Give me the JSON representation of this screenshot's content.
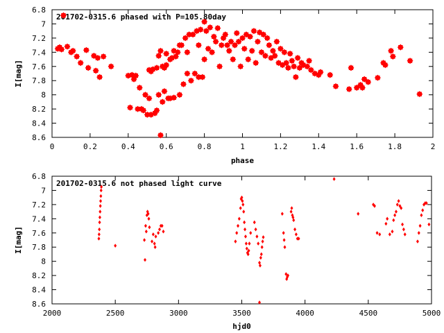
{
  "chart_data": [
    {
      "type": "scatter",
      "title": "201702-0315.6 phased with P=105.80day",
      "xlabel": "phase",
      "ylabel": "I[mag]",
      "xlim": [
        0,
        2
      ],
      "ylim": [
        8.6,
        6.8
      ],
      "y_inverted": true,
      "grid": false,
      "marker_color": "#ff0000",
      "xticks": [
        "0",
        "0.2",
        "0.4",
        "0.6",
        "0.8",
        "1",
        "1.2",
        "1.4",
        "1.6",
        "1.8",
        "2"
      ],
      "yticks": [
        "6.8",
        "7",
        "7.2",
        "7.4",
        "7.6",
        "7.8",
        "8",
        "8.2",
        "8.4",
        "8.6"
      ],
      "series": [
        {
          "points": [
            [
              0.03,
              7.35
            ],
            [
              0.04,
              7.33
            ],
            [
              0.06,
              6.88
            ],
            [
              0.05,
              7.36
            ],
            [
              0.08,
              7.32
            ],
            [
              0.1,
              7.4
            ],
            [
              0.11,
              7.38
            ],
            [
              0.13,
              7.46
            ],
            [
              0.15,
              7.55
            ],
            [
              0.18,
              7.37
            ],
            [
              0.19,
              7.62
            ],
            [
              0.22,
              7.45
            ],
            [
              0.23,
              7.66
            ],
            [
              0.24,
              7.48
            ],
            [
              0.25,
              7.75
            ],
            [
              0.27,
              7.46
            ],
            [
              0.31,
              7.6
            ],
            [
              0.4,
              7.73
            ],
            [
              0.41,
              8.18
            ],
            [
              0.42,
              7.72
            ],
            [
              0.43,
              7.78
            ],
            [
              0.44,
              7.73
            ],
            [
              0.45,
              8.2
            ],
            [
              0.46,
              7.9
            ],
            [
              0.47,
              8.2
            ],
            [
              0.48,
              8.22
            ],
            [
              0.49,
              8.0
            ],
            [
              0.5,
              8.28
            ],
            [
              0.51,
              8.05
            ],
            [
              0.51,
              7.65
            ],
            [
              0.52,
              8.28
            ],
            [
              0.52,
              7.67
            ],
            [
              0.53,
              7.64
            ],
            [
              0.54,
              8.26
            ],
            [
              0.55,
              8.22
            ],
            [
              0.55,
              7.62
            ],
            [
              0.56,
              8.0
            ],
            [
              0.56,
              7.45
            ],
            [
              0.57,
              7.38
            ],
            [
              0.57,
              8.57
            ],
            [
              0.58,
              7.6
            ],
            [
              0.58,
              8.1
            ],
            [
              0.59,
              7.62
            ],
            [
              0.59,
              7.95
            ],
            [
              0.6,
              7.42
            ],
            [
              0.6,
              7.58
            ],
            [
              0.61,
              8.05
            ],
            [
              0.62,
              7.5
            ],
            [
              0.62,
              8.05
            ],
            [
              0.63,
              7.48
            ],
            [
              0.64,
              7.38
            ],
            [
              0.64,
              8.04
            ],
            [
              0.65,
              7.46
            ],
            [
              0.66,
              7.4
            ],
            [
              0.67,
              7.3
            ],
            [
              0.67,
              8.0
            ],
            [
              0.68,
              7.3
            ],
            [
              0.69,
              7.85
            ],
            [
              0.7,
              7.2
            ],
            [
              0.71,
              7.7
            ],
            [
              0.71,
              7.4
            ],
            [
              0.72,
              7.15
            ],
            [
              0.73,
              7.8
            ],
            [
              0.74,
              7.15
            ],
            [
              0.75,
              7.7
            ],
            [
              0.76,
              7.1
            ],
            [
              0.77,
              7.75
            ],
            [
              0.77,
              7.3
            ],
            [
              0.78,
              7.08
            ],
            [
              0.79,
              7.75
            ],
            [
              0.8,
              6.97
            ],
            [
              0.8,
              7.5
            ],
            [
              0.81,
              7.1
            ],
            [
              0.82,
              7.35
            ],
            [
              0.83,
              7.05
            ],
            [
              0.84,
              7.4
            ],
            [
              0.85,
              7.18
            ],
            [
              0.86,
              7.25
            ],
            [
              0.87,
              7.06
            ],
            [
              0.88,
              7.6
            ],
            [
              0.89,
              7.3
            ],
            [
              0.9,
              7.2
            ],
            [
              0.91,
              7.15
            ],
            [
              0.92,
              7.3
            ],
            [
              0.93,
              7.38
            ],
            [
              0.94,
              7.25
            ],
            [
              0.95,
              7.5
            ],
            [
              0.96,
              7.3
            ],
            [
              0.97,
              7.13
            ],
            [
              0.98,
              7.25
            ],
            [
              0.99,
              7.6
            ],
            [
              1.0,
              7.2
            ],
            [
              1.01,
              7.35
            ],
            [
              1.02,
              7.15
            ],
            [
              1.03,
              7.5
            ],
            [
              1.04,
              7.18
            ],
            [
              1.05,
              7.38
            ],
            [
              1.06,
              7.1
            ],
            [
              1.07,
              7.55
            ],
            [
              1.08,
              7.25
            ],
            [
              1.09,
              7.12
            ],
            [
              1.1,
              7.4
            ],
            [
              1.11,
              7.15
            ],
            [
              1.12,
              7.45
            ],
            [
              1.13,
              7.2
            ],
            [
              1.14,
              7.3
            ],
            [
              1.15,
              7.48
            ],
            [
              1.16,
              7.38
            ],
            [
              1.17,
              7.45
            ],
            [
              1.18,
              7.25
            ],
            [
              1.19,
              7.55
            ],
            [
              1.2,
              7.35
            ],
            [
              1.21,
              7.58
            ],
            [
              1.22,
              7.4
            ],
            [
              1.23,
              7.55
            ],
            [
              1.24,
              7.62
            ],
            [
              1.25,
              7.42
            ],
            [
              1.26,
              7.52
            ],
            [
              1.27,
              7.6
            ],
            [
              1.28,
              7.75
            ],
            [
              1.29,
              7.48
            ],
            [
              1.3,
              7.62
            ],
            [
              1.31,
              7.55
            ],
            [
              1.32,
              7.58
            ],
            [
              1.34,
              7.6
            ],
            [
              1.35,
              7.52
            ],
            [
              1.36,
              7.65
            ],
            [
              1.38,
              7.7
            ],
            [
              1.4,
              7.72
            ],
            [
              1.41,
              7.68
            ],
            [
              1.46,
              7.72
            ],
            [
              1.49,
              7.88
            ],
            [
              1.56,
              7.92
            ],
            [
              1.57,
              7.62
            ],
            [
              1.6,
              7.9
            ],
            [
              1.62,
              7.86
            ],
            [
              1.63,
              7.9
            ],
            [
              1.64,
              7.78
            ],
            [
              1.66,
              7.82
            ],
            [
              1.71,
              7.76
            ],
            [
              1.74,
              7.55
            ],
            [
              1.75,
              7.58
            ],
            [
              1.78,
              7.38
            ],
            [
              1.79,
              7.46
            ],
            [
              1.83,
              7.33
            ],
            [
              1.88,
              7.52
            ],
            [
              1.93,
              7.99
            ]
          ]
        }
      ]
    },
    {
      "type": "scatter",
      "title": "201702-0315.6 not phased light curve",
      "xlabel": "hjd0",
      "ylabel": "I[mag]",
      "xlim": [
        2000,
        5000
      ],
      "ylim": [
        8.6,
        6.8
      ],
      "y_inverted": true,
      "grid": false,
      "marker_color": "#ff0000",
      "xticks": [
        "2000",
        "2500",
        "3000",
        "3500",
        "4000",
        "4500",
        "5000"
      ],
      "yticks": [
        "6.8",
        "7",
        "7.2",
        "7.4",
        "7.6",
        "7.8",
        "8",
        "8.2",
        "8.4",
        "8.6"
      ],
      "series": [
        {
          "points": [
            [
              2370,
              7.68
            ],
            [
              2372,
              7.62
            ],
            [
              2374,
              7.55
            ],
            [
              2376,
              7.45
            ],
            [
              2378,
              7.38
            ],
            [
              2380,
              7.3
            ],
            [
              2382,
              7.22
            ],
            [
              2384,
              7.15
            ],
            [
              2386,
              7.08
            ],
            [
              2388,
              7.0
            ],
            [
              2390,
              6.95
            ],
            [
              2500,
              7.78
            ],
            [
              2730,
              7.7
            ],
            [
              2735,
              7.98
            ],
            [
              2740,
              7.5
            ],
            [
              2745,
              7.58
            ],
            [
              2750,
              7.35
            ],
            [
              2755,
              7.3
            ],
            [
              2760,
              7.33
            ],
            [
              2765,
              7.4
            ],
            [
              2770,
              7.52
            ],
            [
              2790,
              7.72
            ],
            [
              2800,
              7.62
            ],
            [
              2810,
              7.75
            ],
            [
              2815,
              7.8
            ],
            [
              2820,
              7.65
            ],
            [
              2840,
              7.6
            ],
            [
              2850,
              7.55
            ],
            [
              2860,
              7.5
            ],
            [
              2870,
              7.5
            ],
            [
              2880,
              7.58
            ],
            [
              3450,
              7.72
            ],
            [
              3460,
              7.6
            ],
            [
              3470,
              7.5
            ],
            [
              3480,
              7.4
            ],
            [
              3490,
              7.25
            ],
            [
              3495,
              7.12
            ],
            [
              3500,
              7.1
            ],
            [
              3505,
              7.15
            ],
            [
              3510,
              7.2
            ],
            [
              3515,
              7.3
            ],
            [
              3520,
              7.45
            ],
            [
              3525,
              7.55
            ],
            [
              3530,
              7.65
            ],
            [
              3535,
              7.75
            ],
            [
              3540,
              7.82
            ],
            [
              3545,
              7.88
            ],
            [
              3550,
              7.9
            ],
            [
              3555,
              7.85
            ],
            [
              3560,
              7.75
            ],
            [
              3570,
              7.6
            ],
            [
              3600,
              7.45
            ],
            [
              3610,
              7.55
            ],
            [
              3620,
              7.65
            ],
            [
              3630,
              7.75
            ],
            [
              3640,
              8.02
            ],
            [
              3645,
              8.06
            ],
            [
              3650,
              7.95
            ],
            [
              3655,
              7.9
            ],
            [
              3660,
              7.8
            ],
            [
              3665,
              7.72
            ],
            [
              3670,
              7.66
            ],
            [
              3640,
              8.58
            ],
            [
              3820,
              7.33
            ],
            [
              3830,
              7.6
            ],
            [
              3835,
              7.7
            ],
            [
              3840,
              7.8
            ],
            [
              3850,
              8.18
            ],
            [
              3855,
              8.25
            ],
            [
              3860,
              8.22
            ],
            [
              3865,
              8.2
            ],
            [
              3890,
              7.3
            ],
            [
              3895,
              7.25
            ],
            [
              3900,
              7.35
            ],
            [
              3905,
              7.38
            ],
            [
              3910,
              7.42
            ],
            [
              3920,
              7.55
            ],
            [
              3930,
              7.62
            ],
            [
              3940,
              7.68
            ],
            [
              3950,
              7.68
            ],
            [
              4230,
              6.84
            ],
            [
              4420,
              7.33
            ],
            [
              4540,
              7.2
            ],
            [
              4550,
              7.22
            ],
            [
              4570,
              7.6
            ],
            [
              4590,
              7.62
            ],
            [
              4640,
              7.47
            ],
            [
              4650,
              7.4
            ],
            [
              4670,
              7.62
            ],
            [
              4690,
              7.58
            ],
            [
              4700,
              7.42
            ],
            [
              4710,
              7.35
            ],
            [
              4720,
              7.3
            ],
            [
              4730,
              7.2
            ],
            [
              4740,
              7.15
            ],
            [
              4750,
              7.22
            ],
            [
              4760,
              7.25
            ],
            [
              4770,
              7.48
            ],
            [
              4780,
              7.55
            ],
            [
              4790,
              7.62
            ],
            [
              4890,
              7.72
            ],
            [
              4900,
              7.6
            ],
            [
              4910,
              7.5
            ],
            [
              4920,
              7.35
            ],
            [
              4930,
              7.28
            ],
            [
              4940,
              7.2
            ],
            [
              4950,
              7.18
            ],
            [
              4960,
              7.18
            ],
            [
              4980,
              7.48
            ]
          ]
        }
      ]
    }
  ]
}
